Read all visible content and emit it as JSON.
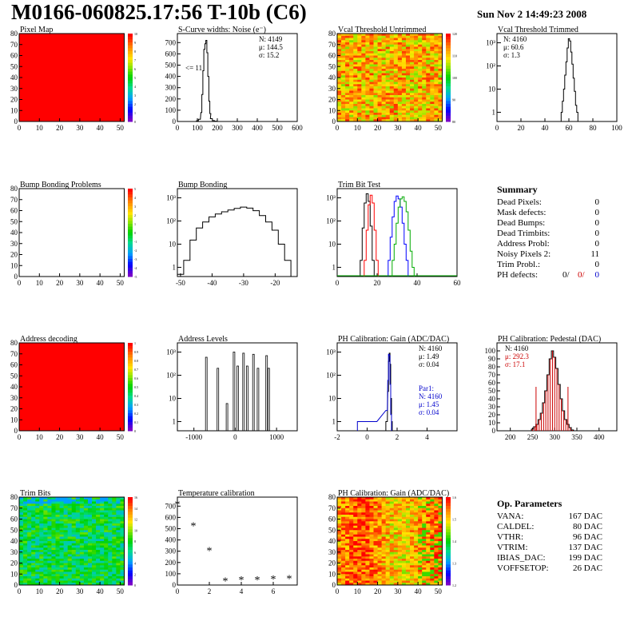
{
  "header": {
    "title": "M0166-060825.17:56 T-10b (C6)",
    "date": "Sun Nov  2 14:49:23 2008"
  },
  "panels": [
    {
      "id": "pixel_map",
      "title": "Pixel Map",
      "type": "map",
      "fill": "solid_red",
      "xticks": [
        "0",
        "10",
        "20",
        "30",
        "40",
        "50"
      ],
      "yticks": [
        "0",
        "10",
        "20",
        "30",
        "40",
        "50",
        "60",
        "70",
        "80"
      ],
      "palette_ticks": [
        "0",
        "1",
        "2",
        "3",
        "4",
        "5",
        "6",
        "7",
        "8",
        "9",
        "10"
      ]
    },
    {
      "id": "scurve",
      "title": "S-Curve widths: Noise (e⁻)",
      "type": "hist",
      "xticks": [
        "0",
        "100",
        "200",
        "300",
        "400",
        "500",
        "600"
      ],
      "yticks": [
        "0",
        "100",
        "200",
        "300",
        "400",
        "500",
        "600",
        "700"
      ],
      "stats": [
        {
          "text": "N: 4149",
          "color": "#000"
        },
        {
          "text": "μ: 144.5",
          "color": "#000"
        },
        {
          "text": "σ: 15.2",
          "color": "#000"
        }
      ],
      "note": "<= 11"
    },
    {
      "id": "vcal_untrimmed",
      "title": "Vcal Threshold Untrimmed",
      "type": "map",
      "fill": "noisy_warm",
      "xticks": [
        "0",
        "10",
        "20",
        "30",
        "40",
        "50"
      ],
      "yticks": [
        "0",
        "10",
        "20",
        "30",
        "40",
        "50",
        "60",
        "70",
        "80"
      ],
      "palette_ticks": [
        "80",
        "90",
        "100",
        "110",
        "120"
      ]
    },
    {
      "id": "vcal_trimmed",
      "title": "Vcal Threshold Trimmed",
      "type": "hist_log",
      "xticks": [
        "0",
        "20",
        "40",
        "60",
        "80",
        "100"
      ],
      "yticks": [
        "1",
        "10",
        "10²",
        "10³"
      ],
      "stats": [
        {
          "text": "N: 4160",
          "color": "#000"
        },
        {
          "text": "μ: 60.6",
          "color": "#000"
        },
        {
          "text": "σ:  1.3",
          "color": "#000"
        }
      ]
    },
    {
      "id": "bump_problems",
      "title": "Bump Bonding Problems",
      "type": "map",
      "fill": "empty",
      "xticks": [
        "0",
        "10",
        "20",
        "30",
        "40",
        "50"
      ],
      "yticks": [
        "0",
        "10",
        "20",
        "30",
        "40",
        "50",
        "60",
        "70",
        "80"
      ],
      "palette_ticks": [
        "-5",
        "-4",
        "-3",
        "-2",
        "-1",
        "0",
        "1",
        "2",
        "3",
        "4",
        "5"
      ]
    },
    {
      "id": "bump_bonding",
      "title": "Bump Bonding",
      "type": "hist_log",
      "xticks": [
        "-50",
        "-40",
        "-30",
        "-20"
      ],
      "yticks": [
        "1",
        "10",
        "10²",
        "10³"
      ]
    },
    {
      "id": "trim_bit_test",
      "title": "Trim Bit Test",
      "type": "hist_log",
      "xticks": [
        "0",
        "20",
        "40",
        "60"
      ],
      "yticks": [
        "1",
        "10",
        "10²",
        "10³"
      ]
    },
    {
      "id": "address_decoding",
      "title": "Address decoding",
      "type": "map",
      "fill": "solid_red",
      "xticks": [
        "0",
        "10",
        "20",
        "30",
        "40",
        "50"
      ],
      "yticks": [
        "0",
        "10",
        "20",
        "30",
        "40",
        "50",
        "60",
        "70",
        "80"
      ],
      "palette_ticks": [
        "0",
        "0.1",
        "0.2",
        "0.3",
        "0.4",
        "0.5",
        "0.6",
        "0.7",
        "0.8",
        "0.9",
        "1"
      ]
    },
    {
      "id": "address_levels",
      "title": "Address Levels",
      "type": "hist_log",
      "xticks": [
        "-1000",
        "0",
        "1000"
      ],
      "yticks": [
        "1",
        "10",
        "10²",
        "10³"
      ]
    },
    {
      "id": "ph_gain",
      "title": "PH Calibration: Gain (ADC/DAC)",
      "type": "hist_log",
      "xticks": [
        "-2",
        "0",
        "2",
        "4"
      ],
      "yticks": [
        "1",
        "10",
        "10²",
        "10³"
      ],
      "stats": [
        {
          "text": "N: 4160",
          "color": "#000"
        },
        {
          "text": "μ: 1.49",
          "color": "#000"
        },
        {
          "text": "σ: 0.04",
          "color": "#000"
        }
      ],
      "stats2": [
        {
          "text": "Par1:",
          "color": "#0000cc"
        },
        {
          "text": "N: 4160",
          "color": "#0000cc"
        },
        {
          "text": "μ: 1.45",
          "color": "#0000cc"
        },
        {
          "text": "σ: 0.04",
          "color": "#0000cc"
        }
      ]
    },
    {
      "id": "ph_pedestal",
      "title": "PH Calibration: Pedestal (DAC)",
      "type": "hist",
      "xticks": [
        "200",
        "250",
        "300",
        "350",
        "400"
      ],
      "yticks": [
        "0",
        "10",
        "20",
        "30",
        "40",
        "50",
        "60",
        "70",
        "80",
        "90",
        "100"
      ],
      "stats": [
        {
          "text": "N: 4160",
          "color": "#000"
        },
        {
          "text": "μ: 292.3",
          "color": "#cc0000"
        },
        {
          "text": "σ: 17.1",
          "color": "#cc0000"
        }
      ]
    },
    {
      "id": "trim_bits",
      "title": "Trim Bits",
      "type": "map",
      "fill": "noisy_green",
      "xticks": [
        "0",
        "10",
        "20",
        "30",
        "40",
        "50"
      ],
      "yticks": [
        "0",
        "10",
        "20",
        "30",
        "40",
        "50",
        "60",
        "70",
        "80"
      ],
      "palette_ticks": [
        "0",
        "2",
        "4",
        "6",
        "8",
        "10",
        "12",
        "14",
        "16"
      ]
    },
    {
      "id": "temp_cal",
      "title": "Temperature calibration",
      "type": "scatter",
      "xticks": [
        "0",
        "2",
        "4",
        "6"
      ],
      "yticks": [
        "0",
        "100",
        "200",
        "300",
        "400",
        "500",
        "600",
        "700"
      ]
    },
    {
      "id": "ph_gain_map",
      "title": "PH Calibration: Gain (ADC/DAC)",
      "type": "map",
      "fill": "noisy_gain",
      "xticks": [
        "0",
        "10",
        "20",
        "30",
        "40",
        "50"
      ],
      "yticks": [
        "0",
        "10",
        "20",
        "30",
        "40",
        "50",
        "60",
        "70",
        "80"
      ],
      "palette_ticks": [
        "1.2",
        "1.3",
        "1.4",
        "1.5",
        "1.6"
      ]
    }
  ],
  "summary": {
    "title": "Summary",
    "rows": [
      {
        "label": "Dead Pixels:",
        "value": "0"
      },
      {
        "label": "Mask defects:",
        "value": "0"
      },
      {
        "label": "Dead Bumps:",
        "value": "0"
      },
      {
        "label": "Dead Trimbits:",
        "value": "0"
      },
      {
        "label": "Address Probl:",
        "value": "0"
      },
      {
        "label": "Noisy Pixels 2:",
        "value": "11"
      },
      {
        "label": "Trim Probl.:",
        "value": "0"
      }
    ],
    "ph_defects": {
      "label": "PH defects:",
      "v1": "0/",
      "v2": "0/",
      "v3": "0",
      "c2": "#cc0000",
      "c3": "#0000cc"
    }
  },
  "op_params": {
    "title": "Op. Parameters",
    "rows": [
      {
        "label": "VANA:",
        "value": "167 DAC"
      },
      {
        "label": "CALDEL:",
        "value": "80 DAC"
      },
      {
        "label": "VTHR:",
        "value": "96 DAC"
      },
      {
        "label": "VTRIM:",
        "value": "137 DAC"
      },
      {
        "label": "IBIAS_DAC:",
        "value": "199 DAC"
      },
      {
        "label": "VOFFSETOP:",
        "value": "26 DAC"
      }
    ]
  },
  "chart_data": [
    {
      "type": "heatmap",
      "title": "Pixel Map",
      "xlim": [
        0,
        52
      ],
      "ylim": [
        0,
        80
      ],
      "value": 10,
      "zlim": [
        0,
        10
      ]
    },
    {
      "type": "bar",
      "title": "S-Curve widths: Noise (e⁻)",
      "x": [
        100,
        110,
        120,
        125,
        130,
        135,
        140,
        145,
        150,
        155,
        160,
        165,
        170,
        180,
        190,
        200
      ],
      "values": [
        5,
        20,
        80,
        240,
        450,
        640,
        690,
        720,
        610,
        400,
        180,
        70,
        25,
        8,
        3,
        0
      ],
      "xlim": [
        0,
        600
      ],
      "ylim": [
        0,
        780
      ]
    },
    {
      "type": "heatmap",
      "title": "Vcal Threshold Untrimmed",
      "xlim": [
        0,
        52
      ],
      "ylim": [
        0,
        80
      ],
      "zlim": [
        75,
        125
      ]
    },
    {
      "type": "bar",
      "title": "Vcal Threshold Trimmed",
      "log": true,
      "x": [
        54,
        55,
        56,
        57,
        58,
        59,
        60,
        61,
        62,
        63,
        64,
        65,
        66,
        67
      ],
      "values": [
        1,
        3,
        10,
        40,
        150,
        600,
        1500,
        1200,
        400,
        120,
        30,
        8,
        2,
        1
      ],
      "xlim": [
        0,
        100
      ]
    },
    {
      "type": "heatmap",
      "title": "Bump Bonding Problems",
      "xlim": [
        0,
        52
      ],
      "ylim": [
        0,
        80
      ],
      "zlim": [
        -5,
        5
      ]
    },
    {
      "type": "bar",
      "title": "Bump Bonding",
      "log": true,
      "x": [
        -50,
        -48,
        -46,
        -44,
        -42,
        -40,
        -38,
        -36,
        -34,
        -32,
        -30,
        -28,
        -26,
        -24,
        -22,
        -20,
        -18,
        -16
      ],
      "values": [
        0.5,
        2,
        15,
        50,
        90,
        150,
        200,
        250,
        300,
        350,
        400,
        360,
        280,
        170,
        90,
        40,
        10,
        2
      ],
      "xlim": [
        -51,
        -13
      ]
    },
    {
      "type": "bar",
      "title": "Trim Bit Test",
      "log": true,
      "series": [
        {
          "name": "",
          "color": "#000000",
          "x": [
            12,
            13,
            14,
            15,
            16,
            17,
            18
          ],
          "values": [
            2,
            50,
            600,
            1500,
            700,
            60,
            2
          ]
        },
        {
          "name": "",
          "color": "#ff0000",
          "x": [
            14,
            15,
            16,
            17,
            18,
            19,
            20
          ],
          "values": [
            2,
            40,
            500,
            1300,
            600,
            40,
            2
          ]
        },
        {
          "name": "",
          "color": "#0000ff",
          "x": [
            26,
            27,
            28,
            29,
            30,
            31,
            32,
            33,
            34,
            35
          ],
          "values": [
            2,
            20,
            150,
            700,
            1200,
            900,
            400,
            80,
            10,
            2
          ]
        },
        {
          "name": "",
          "color": "#00aa00",
          "x": [
            28,
            29,
            30,
            31,
            32,
            33,
            34,
            35,
            36,
            37,
            38
          ],
          "values": [
            2,
            10,
            80,
            400,
            900,
            1100,
            700,
            250,
            40,
            5,
            1
          ]
        }
      ],
      "xlim": [
        0,
        60
      ]
    },
    {
      "type": "heatmap",
      "title": "Address decoding",
      "xlim": [
        0,
        52
      ],
      "ylim": [
        0,
        80
      ],
      "value": 1,
      "zlim": [
        0,
        1
      ]
    },
    {
      "type": "bar",
      "title": "Address Levels",
      "log": true,
      "x": [
        -700,
        -420,
        -200,
        -30,
        60,
        200,
        290,
        440,
        550,
        760,
        810
      ],
      "values": [
        600,
        200,
        6,
        1000,
        250,
        900,
        250,
        800,
        200,
        700,
        200
      ],
      "xlim": [
        -1400,
        1500
      ]
    },
    {
      "type": "bar",
      "title": "PH Calibration: Gain (ADC/DAC)",
      "log": true,
      "series": [
        {
          "name": "",
          "color": "#000000",
          "x": [
            1.3,
            1.4,
            1.45,
            1.5,
            1.55,
            1.6,
            1.65
          ],
          "values": [
            1,
            20,
            400,
            900,
            300,
            10,
            1
          ]
        },
        {
          "name": "Par1",
          "color": "#0000cc",
          "x": [
            0,
            1.3,
            1.4,
            1.45,
            1.5,
            1.55,
            1.6
          ],
          "values": [
            1,
            3,
            60,
            800,
            700,
            40,
            2
          ]
        }
      ],
      "xlim": [
        -2,
        6
      ]
    },
    {
      "type": "bar",
      "title": "PH Calibration: Pedestal (DAC)",
      "x": [
        250,
        255,
        260,
        265,
        270,
        275,
        280,
        285,
        290,
        295,
        300,
        305,
        310,
        315,
        320,
        325,
        330,
        335,
        340
      ],
      "values": [
        2,
        5,
        8,
        14,
        22,
        35,
        50,
        70,
        90,
        100,
        92,
        78,
        58,
        40,
        25,
        14,
        8,
        4,
        1
      ],
      "ylim": [
        0,
        110
      ],
      "xlim": [
        170,
        440
      ]
    },
    {
      "type": "heatmap",
      "title": "Trim Bits",
      "xlim": [
        0,
        52
      ],
      "ylim": [
        0,
        80
      ],
      "zlim": [
        0,
        16
      ]
    },
    {
      "type": "scatter",
      "title": "Temperature calibration",
      "x": [
        0,
        1,
        2,
        3,
        4,
        5,
        6,
        7
      ],
      "y": [
        720,
        530,
        310,
        40,
        50,
        50,
        55,
        60
      ],
      "xlim": [
        0,
        7.5
      ],
      "ylim": [
        0,
        780
      ]
    },
    {
      "type": "heatmap",
      "title": "PH Calibration: Gain (ADC/DAC)",
      "xlim": [
        0,
        52
      ],
      "ylim": [
        0,
        80
      ],
      "zlim": [
        1.15,
        1.7
      ]
    }
  ]
}
